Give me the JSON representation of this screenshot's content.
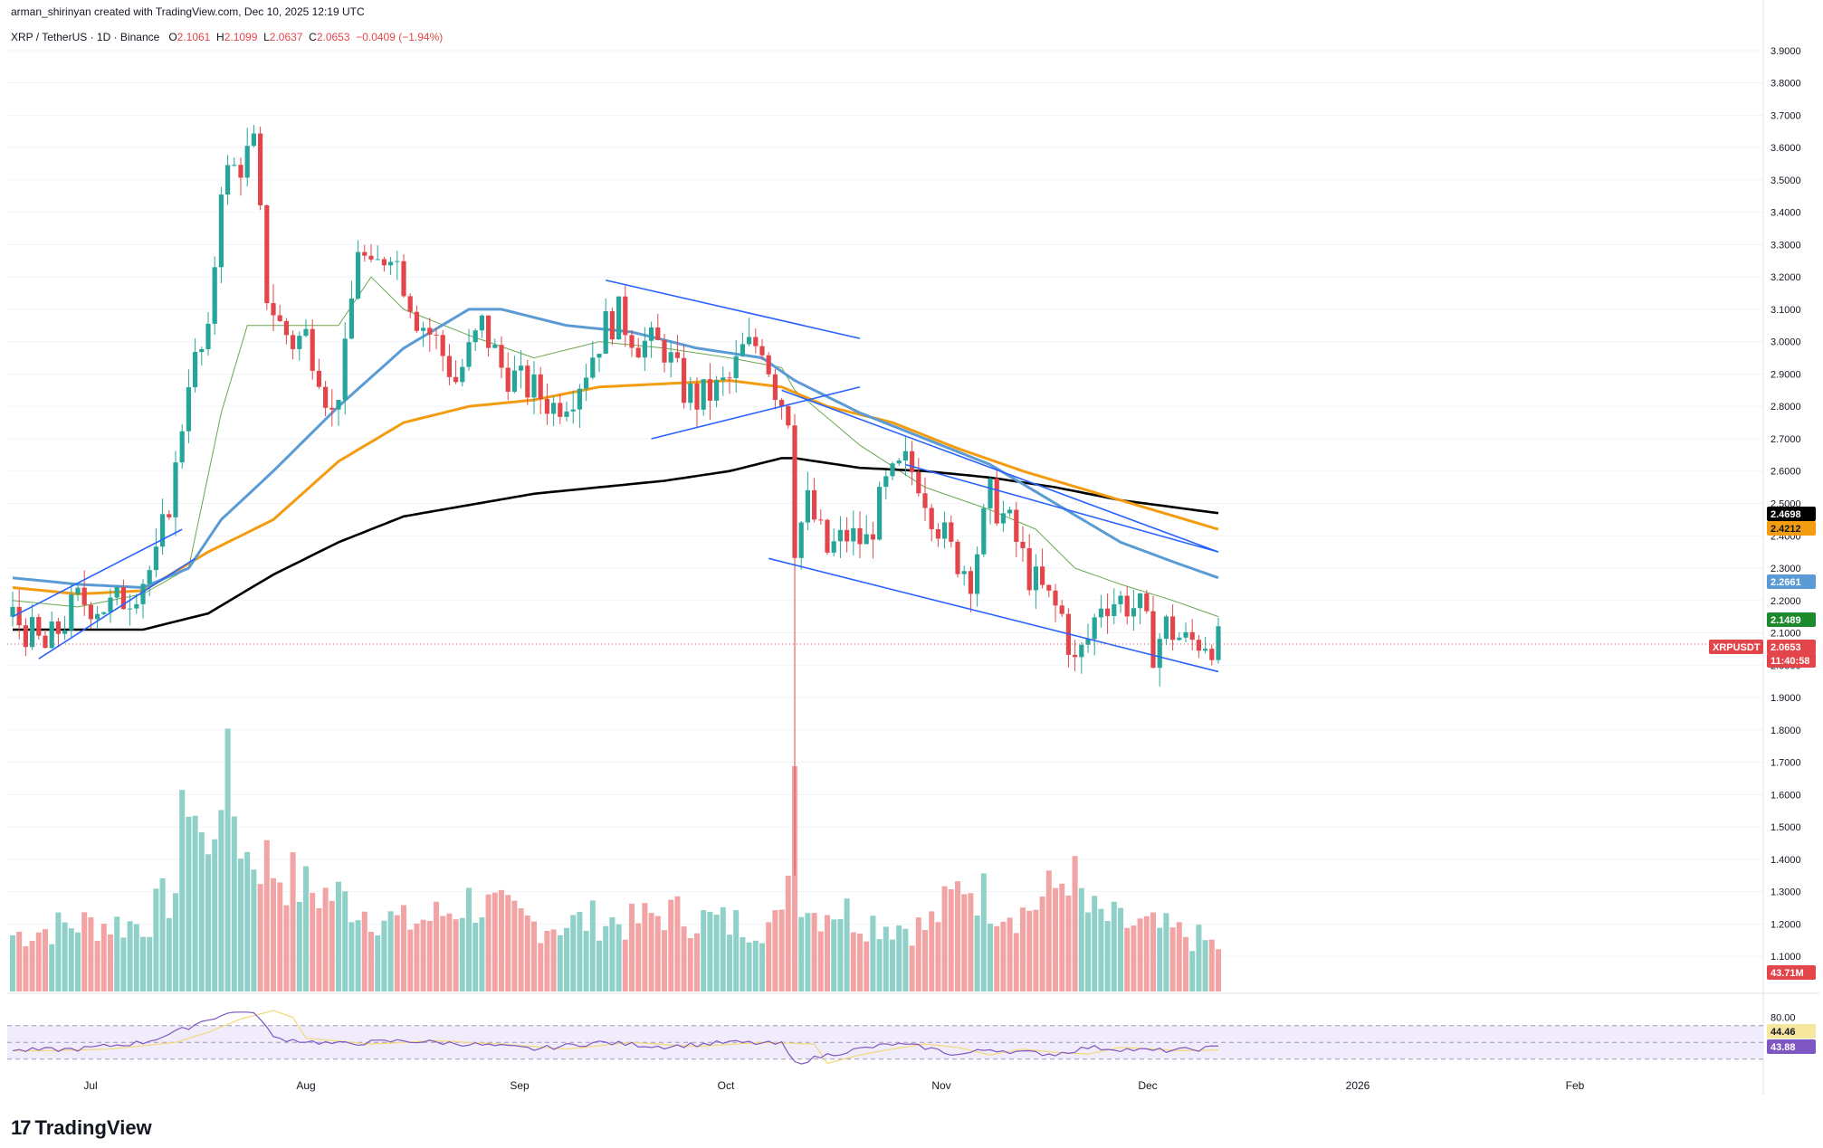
{
  "header": {
    "attribution": "arman_shirinyan created with TradingView.com, Dec 10, 2025 12:19 UTC"
  },
  "symbol": {
    "name": "XRP / TetherUS · 1D · Binance",
    "o_label": "O",
    "o": "2.1061",
    "h_label": "H",
    "h": "2.1099",
    "l_label": "L",
    "l": "2.0637",
    "c_label": "C",
    "c": "2.0653",
    "change": "−0.0409 (−1.94%)"
  },
  "logo": {
    "text": "TradingView",
    "mark": "17"
  },
  "colors": {
    "up": "#26a69a",
    "down": "#e3464a",
    "ma_black": "#000000",
    "ma_orange": "#f39c12",
    "ma_blue": "#5b9bd5",
    "ma_green": "#6aa84f",
    "trendline": "#2962ff",
    "rsi": "#7e57c2"
  },
  "chart_data": {
    "type": "candlestick",
    "y_axis_ticks": [
      "3.9000",
      "3.8000",
      "3.7000",
      "3.6000",
      "3.5000",
      "3.4000",
      "3.3000",
      "3.2000",
      "3.1000",
      "3.0000",
      "2.9000",
      "2.8000",
      "2.7000",
      "2.6000",
      "2.5000",
      "2.4000",
      "2.3000",
      "2.2000",
      "2.1000",
      "2.0000",
      "1.9000",
      "1.8000",
      "1.7000",
      "1.6000",
      "1.5000",
      "1.4000",
      "1.3000",
      "1.2000",
      "1.1000"
    ],
    "ylim": [
      1.05,
      3.95
    ],
    "x_axis_ticks": [
      "Jul",
      "Aug",
      "Sep",
      "Oct",
      "Nov",
      "Dec",
      "2026",
      "Feb"
    ],
    "price_tags": [
      {
        "text": "2.4698",
        "bg": "#000000",
        "fg": "#ffffff"
      },
      {
        "text": "2.4212",
        "bg": "#f39c12",
        "fg": "#131722"
      },
      {
        "text": "2.2661",
        "bg": "#5b9bd5",
        "fg": "#ffffff"
      },
      {
        "text": "2.1489",
        "bg": "#1e8a2e",
        "fg": "#ffffff"
      },
      {
        "text": "2.0653",
        "bg": "#e3464a",
        "fg": "#ffffff"
      },
      {
        "text": "11:40:58",
        "bg": "#e3464a",
        "fg": "#ffffff"
      }
    ],
    "symbol_tag": "XRPUSDT",
    "volume_tag": "43.71M",
    "rsi_ticks": [
      "80.00"
    ],
    "rsi_tags": [
      {
        "text": "44.46",
        "bg": "#f5e79e",
        "fg": "#131722"
      },
      {
        "text": "43.88",
        "bg": "#7e57c2",
        "fg": "#ffffff"
      }
    ],
    "close_anchor": [
      [
        0,
        2.15
      ],
      [
        5,
        2.05
      ],
      [
        10,
        2.2
      ],
      [
        15,
        2.18
      ],
      [
        18,
        2.22
      ],
      [
        22,
        2.32
      ],
      [
        25,
        2.6
      ],
      [
        27,
        2.9
      ],
      [
        30,
        3.0
      ],
      [
        32,
        3.5
      ],
      [
        35,
        3.55
      ],
      [
        37,
        3.6
      ],
      [
        39,
        3.15
      ],
      [
        41,
        3.05
      ],
      [
        43,
        3.0
      ],
      [
        45,
        3.02
      ],
      [
        47,
        2.92
      ],
      [
        49,
        2.77
      ],
      [
        51,
        2.95
      ],
      [
        53,
        3.3
      ],
      [
        55,
        3.2
      ],
      [
        58,
        3.3
      ],
      [
        62,
        3.08
      ],
      [
        65,
        3.0
      ],
      [
        68,
        2.88
      ],
      [
        72,
        3.05
      ],
      [
        75,
        2.92
      ],
      [
        78,
        2.87
      ],
      [
        80,
        2.85
      ],
      [
        83,
        2.8
      ],
      [
        86,
        2.85
      ],
      [
        88,
        2.92
      ],
      [
        91,
        3.05
      ],
      [
        93,
        3.08
      ],
      [
        96,
        3.0
      ],
      [
        100,
        2.98
      ],
      [
        103,
        2.85
      ],
      [
        105,
        2.82
      ],
      [
        108,
        2.85
      ],
      [
        110,
        2.88
      ],
      [
        112,
        2.97
      ],
      [
        115,
        3.0
      ],
      [
        117,
        2.86
      ],
      [
        119,
        2.78
      ],
      [
        120,
        2.38
      ],
      [
        122,
        2.5
      ],
      [
        125,
        2.35
      ],
      [
        128,
        2.4
      ],
      [
        131,
        2.38
      ],
      [
        134,
        2.55
      ],
      [
        137,
        2.62
      ],
      [
        139,
        2.58
      ],
      [
        141,
        2.48
      ],
      [
        144,
        2.35
      ],
      [
        147,
        2.28
      ],
      [
        150,
        2.52
      ],
      [
        153,
        2.43
      ],
      [
        156,
        2.28
      ],
      [
        159,
        2.2
      ],
      [
        161,
        2.15
      ],
      [
        163,
        2.0
      ],
      [
        165,
        2.08
      ],
      [
        167,
        2.2
      ],
      [
        170,
        2.2
      ],
      [
        173,
        2.17
      ],
      [
        175,
        2.05
      ],
      [
        177,
        2.12
      ],
      [
        180,
        2.07
      ],
      [
        183,
        2.08
      ],
      [
        185,
        2.065
      ]
    ],
    "volume_anchor": [
      [
        0,
        0.25
      ],
      [
        10,
        0.3
      ],
      [
        20,
        0.3
      ],
      [
        25,
        0.45
      ],
      [
        27,
        0.95
      ],
      [
        30,
        0.55
      ],
      [
        32,
        1.0
      ],
      [
        34,
        0.8
      ],
      [
        36,
        0.6
      ],
      [
        38,
        0.6
      ],
      [
        40,
        0.55
      ],
      [
        45,
        0.45
      ],
      [
        50,
        0.42
      ],
      [
        55,
        0.35
      ],
      [
        60,
        0.3
      ],
      [
        65,
        0.33
      ],
      [
        70,
        0.4
      ],
      [
        75,
        0.35
      ],
      [
        80,
        0.3
      ],
      [
        85,
        0.3
      ],
      [
        90,
        0.32
      ],
      [
        95,
        0.3
      ],
      [
        100,
        0.35
      ],
      [
        110,
        0.3
      ],
      [
        118,
        0.3
      ],
      [
        120,
        1.0
      ],
      [
        121,
        0.45
      ],
      [
        123,
        0.35
      ],
      [
        126,
        0.38
      ],
      [
        130,
        0.32
      ],
      [
        135,
        0.3
      ],
      [
        140,
        0.28
      ],
      [
        144,
        0.4
      ],
      [
        146,
        0.5
      ],
      [
        150,
        0.4
      ],
      [
        155,
        0.35
      ],
      [
        160,
        0.45
      ],
      [
        162,
        0.55
      ],
      [
        165,
        0.35
      ],
      [
        170,
        0.3
      ],
      [
        175,
        0.28
      ],
      [
        180,
        0.25
      ],
      [
        185,
        0.2
      ]
    ],
    "rsi_anchor": [
      [
        0,
        40
      ],
      [
        10,
        42
      ],
      [
        20,
        50
      ],
      [
        25,
        62
      ],
      [
        30,
        78
      ],
      [
        35,
        88
      ],
      [
        38,
        80
      ],
      [
        40,
        55
      ],
      [
        50,
        48
      ],
      [
        60,
        52
      ],
      [
        70,
        48
      ],
      [
        80,
        42
      ],
      [
        90,
        50
      ],
      [
        100,
        45
      ],
      [
        110,
        50
      ],
      [
        118,
        48
      ],
      [
        120,
        25
      ],
      [
        125,
        35
      ],
      [
        130,
        42
      ],
      [
        135,
        48
      ],
      [
        140,
        44
      ],
      [
        145,
        35
      ],
      [
        150,
        42
      ],
      [
        155,
        38
      ],
      [
        160,
        36
      ],
      [
        165,
        44
      ],
      [
        170,
        42
      ],
      [
        175,
        40
      ],
      [
        180,
        41
      ],
      [
        185,
        44
      ]
    ],
    "ma_black": [
      [
        0,
        2.11
      ],
      [
        20,
        2.11
      ],
      [
        30,
        2.16
      ],
      [
        40,
        2.28
      ],
      [
        50,
        2.38
      ],
      [
        60,
        2.46
      ],
      [
        80,
        2.53
      ],
      [
        100,
        2.57
      ],
      [
        110,
        2.6
      ],
      [
        118,
        2.64
      ],
      [
        120,
        2.64
      ],
      [
        130,
        2.61
      ],
      [
        140,
        2.6
      ],
      [
        150,
        2.58
      ],
      [
        160,
        2.55
      ],
      [
        170,
        2.51
      ],
      [
        185,
        2.47
      ]
    ],
    "ma_orange": [
      [
        0,
        2.24
      ],
      [
        10,
        2.22
      ],
      [
        20,
        2.23
      ],
      [
        30,
        2.35
      ],
      [
        40,
        2.45
      ],
      [
        50,
        2.63
      ],
      [
        60,
        2.75
      ],
      [
        70,
        2.8
      ],
      [
        80,
        2.82
      ],
      [
        90,
        2.86
      ],
      [
        100,
        2.87
      ],
      [
        110,
        2.88
      ],
      [
        118,
        2.86
      ],
      [
        125,
        2.8
      ],
      [
        135,
        2.75
      ],
      [
        145,
        2.67
      ],
      [
        155,
        2.6
      ],
      [
        165,
        2.54
      ],
      [
        175,
        2.48
      ],
      [
        185,
        2.42
      ]
    ],
    "ma_blue": [
      [
        0,
        2.27
      ],
      [
        10,
        2.25
      ],
      [
        20,
        2.24
      ],
      [
        27,
        2.3
      ],
      [
        32,
        2.45
      ],
      [
        40,
        2.6
      ],
      [
        50,
        2.8
      ],
      [
        60,
        2.98
      ],
      [
        70,
        3.1
      ],
      [
        75,
        3.1
      ],
      [
        85,
        3.05
      ],
      [
        95,
        3.03
      ],
      [
        105,
        2.98
      ],
      [
        115,
        2.95
      ],
      [
        120,
        2.88
      ],
      [
        130,
        2.78
      ],
      [
        140,
        2.7
      ],
      [
        150,
        2.62
      ],
      [
        160,
        2.5
      ],
      [
        170,
        2.38
      ],
      [
        178,
        2.32
      ],
      [
        185,
        2.27
      ]
    ],
    "ma_green": [
      [
        0,
        2.2
      ],
      [
        10,
        2.18
      ],
      [
        20,
        2.22
      ],
      [
        27,
        2.3
      ],
      [
        32,
        2.78
      ],
      [
        36,
        3.05
      ],
      [
        40,
        3.05
      ],
      [
        50,
        3.05
      ],
      [
        55,
        3.2
      ],
      [
        60,
        3.1
      ],
      [
        70,
        3.02
      ],
      [
        80,
        2.95
      ],
      [
        90,
        3.0
      ],
      [
        100,
        2.98
      ],
      [
        110,
        2.95
      ],
      [
        118,
        2.92
      ],
      [
        120,
        2.85
      ],
      [
        130,
        2.68
      ],
      [
        140,
        2.55
      ],
      [
        150,
        2.48
      ],
      [
        157,
        2.42
      ],
      [
        163,
        2.3
      ],
      [
        170,
        2.25
      ],
      [
        178,
        2.2
      ],
      [
        185,
        2.15
      ]
    ],
    "trendlines": [
      {
        "name": "july-channel-upper",
        "from": [
          0,
          2.15
        ],
        "to": [
          26,
          2.42
        ]
      },
      {
        "name": "july-channel-lower",
        "from": [
          4,
          2.02
        ],
        "to": [
          28,
          2.33
        ]
      },
      {
        "name": "sep-channel-upper",
        "from": [
          91,
          3.19
        ],
        "to": [
          130,
          3.01
        ]
      },
      {
        "name": "sep-channel-lower",
        "from": [
          98,
          2.7
        ],
        "to": [
          130,
          2.86
        ]
      },
      {
        "name": "oct-channel-upper",
        "from": [
          118,
          2.85
        ],
        "to": [
          185,
          2.35
        ]
      },
      {
        "name": "oct-channel-lower",
        "from": [
          116,
          2.33
        ],
        "to": [
          185,
          1.98
        ]
      },
      {
        "name": "oct-wedge-upper",
        "from": [
          137,
          2.62
        ],
        "to": [
          185,
          2.35
        ]
      }
    ],
    "oct_spike_low": 1.35
  }
}
